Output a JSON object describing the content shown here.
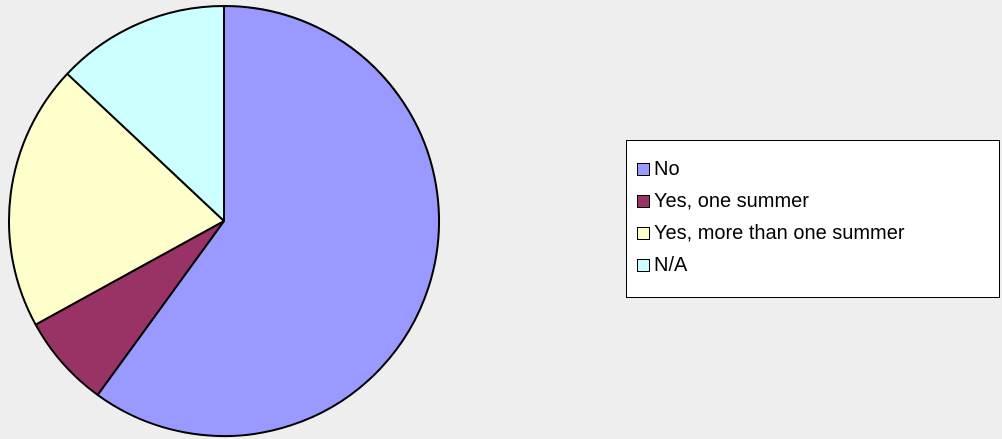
{
  "chart_data": {
    "type": "pie",
    "title": "",
    "categories": [
      "No",
      "Yes, one summer",
      "Yes, more than one summer",
      "N/A"
    ],
    "values": [
      60,
      7,
      20,
      13
    ],
    "unit": "percent (estimated share)",
    "colors": [
      "#9999ff",
      "#993366",
      "#ffffcc",
      "#ccffff"
    ],
    "start_angle_deg": 0,
    "direction": "clockwise",
    "legend_position": "right"
  },
  "legend": {
    "items": [
      {
        "label": "No",
        "color": "#9999ff"
      },
      {
        "label": "Yes, one summer",
        "color": "#993366"
      },
      {
        "label": "Yes, more than one summer",
        "color": "#ffffcc"
      },
      {
        "label": "N/A",
        "color": "#ccffff"
      }
    ]
  }
}
